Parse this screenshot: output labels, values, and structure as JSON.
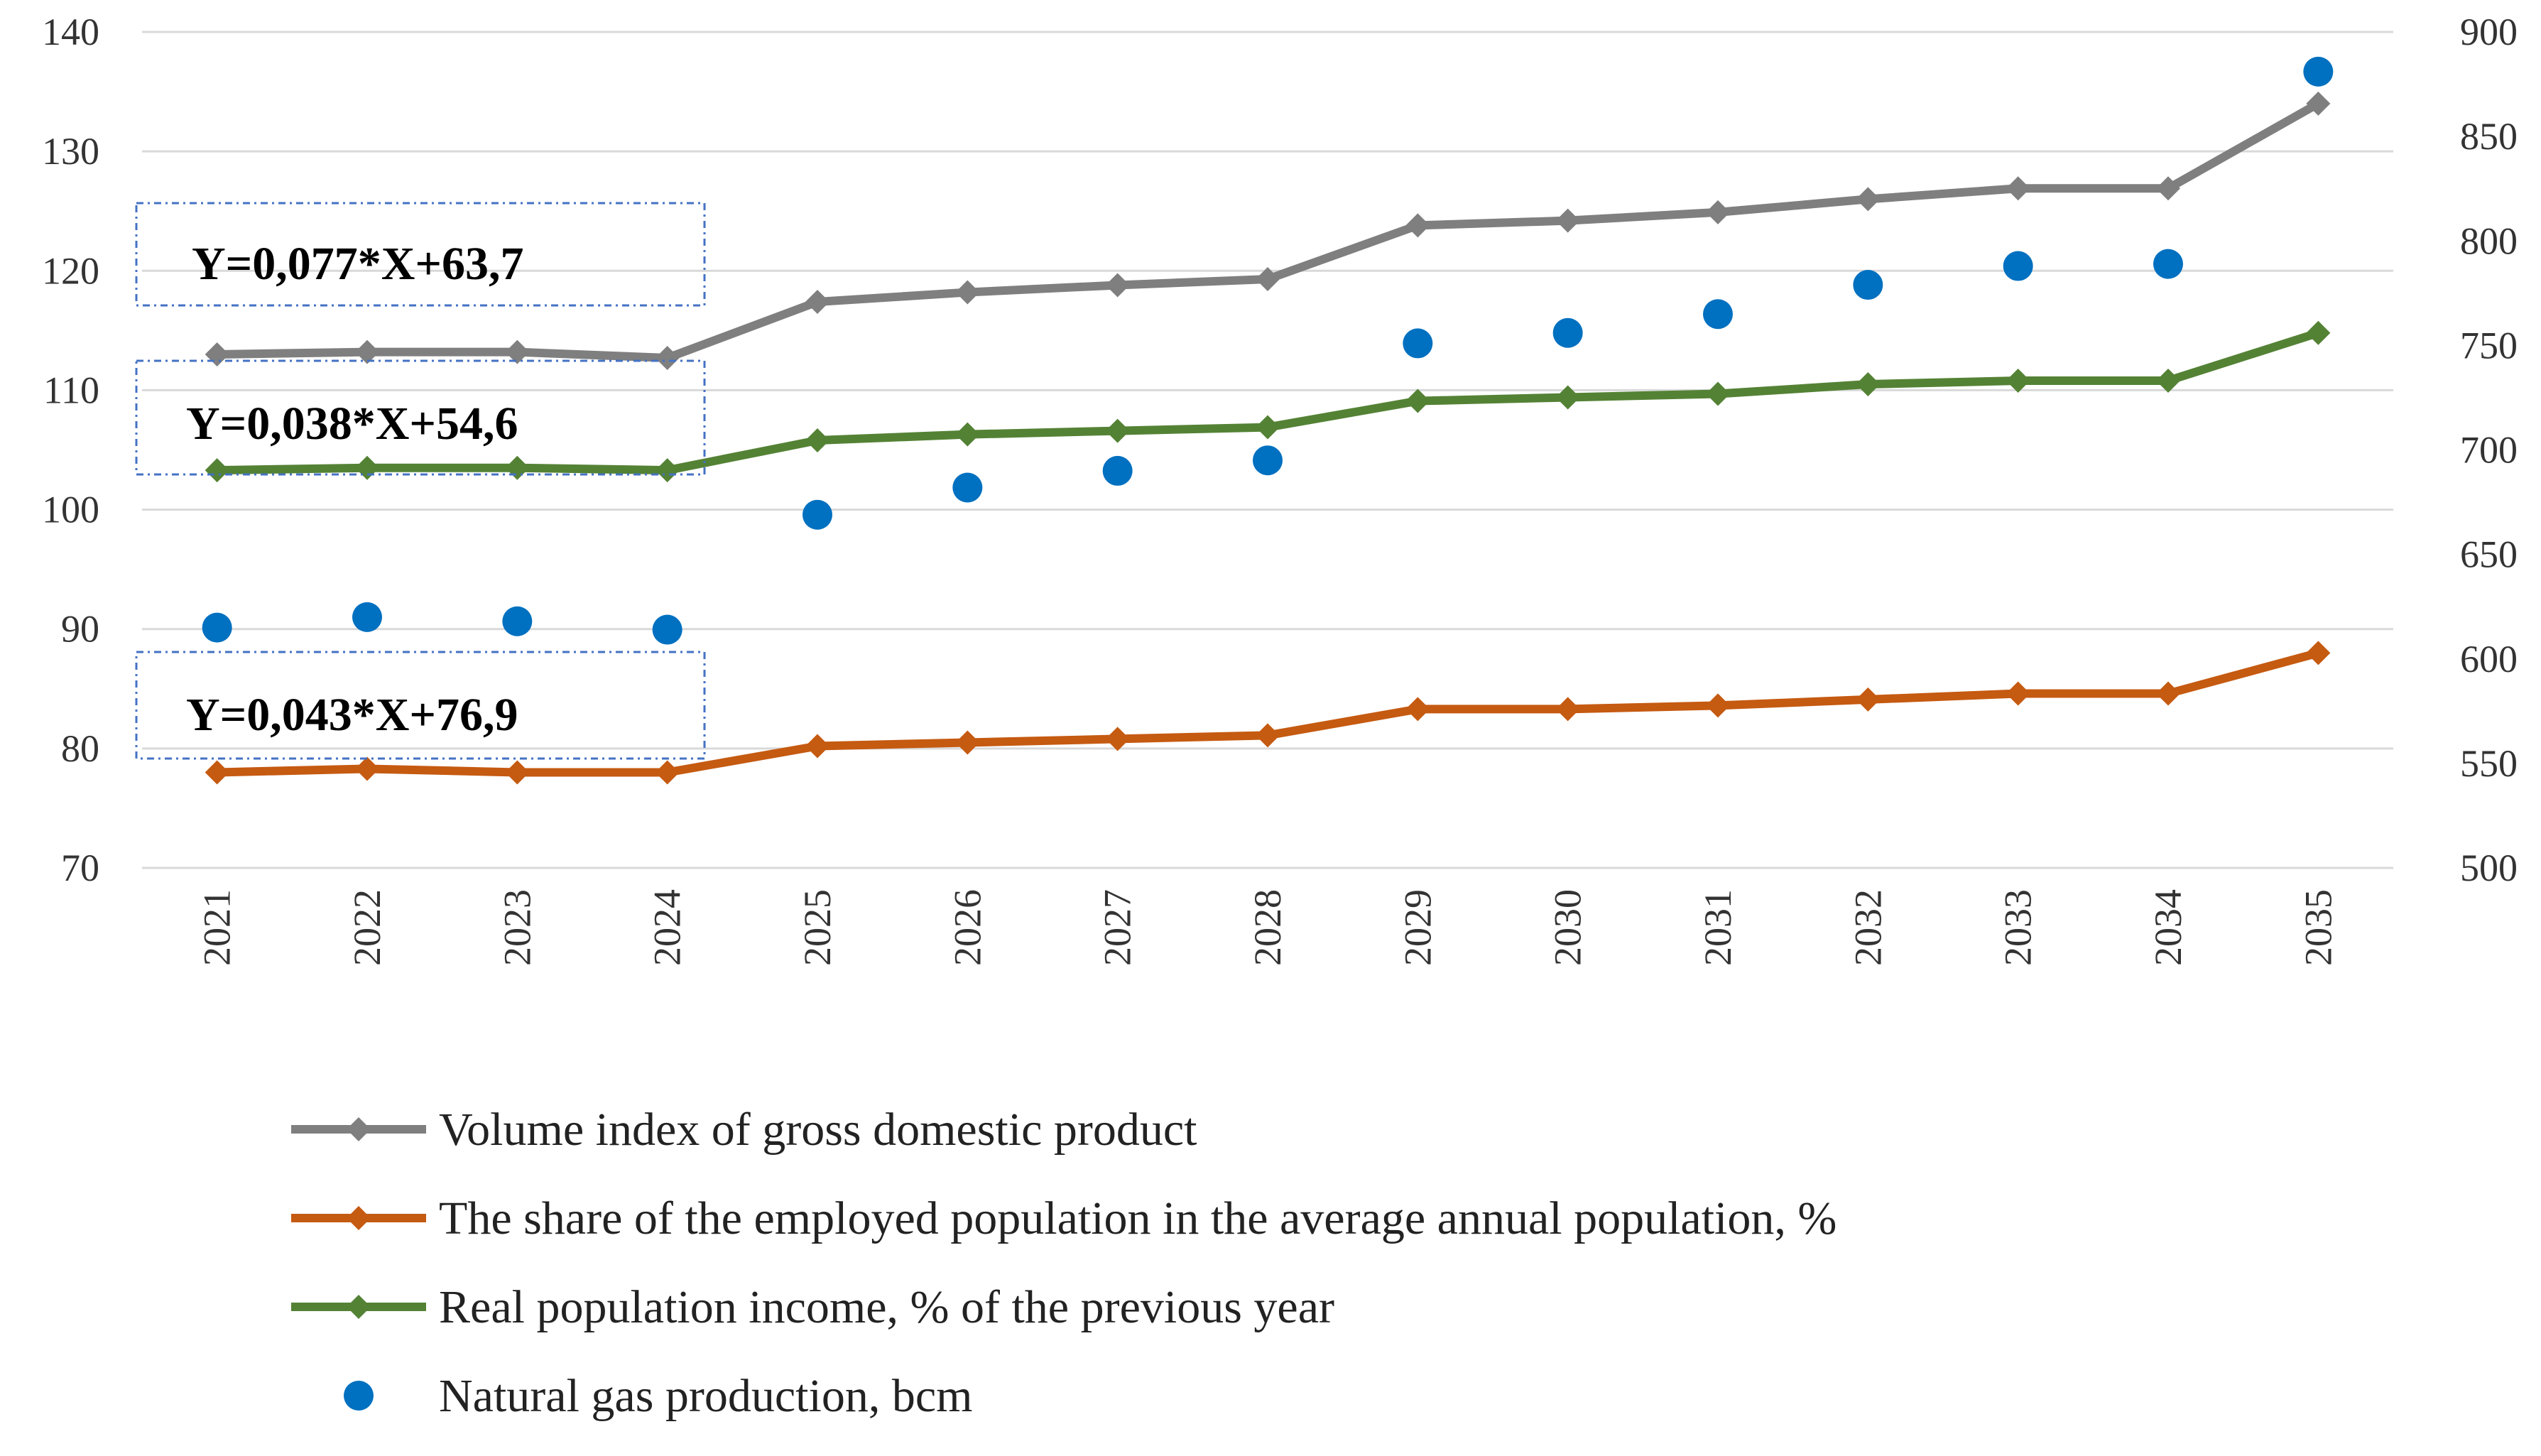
{
  "chart_data": {
    "type": "line",
    "title": "",
    "categories": [
      "2021",
      "2022",
      "2023",
      "2024",
      "2025",
      "2026",
      "2027",
      "2028",
      "2029",
      "2030",
      "2031",
      "2032",
      "2033",
      "2034",
      "2035"
    ],
    "y_left": {
      "min": 70,
      "max": 140,
      "step": 10,
      "ticks": [
        "70",
        "80",
        "90",
        "100",
        "110",
        "120",
        "130",
        "140"
      ]
    },
    "y_right": {
      "min": 500,
      "max": 900,
      "step": 50,
      "ticks": [
        "500",
        "550",
        "600",
        "650",
        "700",
        "750",
        "800",
        "850",
        "900"
      ]
    },
    "series": [
      {
        "name": "Volume index of gross domestic product",
        "axis": "left",
        "style": "line-diamond",
        "color": "#7f7f7f",
        "values": [
          113.0,
          113.2,
          113.2,
          112.7,
          117.4,
          118.2,
          118.8,
          119.3,
          123.8,
          124.2,
          124.9,
          126.0,
          126.9,
          126.9,
          134.0
        ]
      },
      {
        "name": "The share of the employed population in the average annual population, %",
        "axis": "left",
        "style": "line-diamond",
        "color": "#c55a11",
        "values": [
          78.0,
          78.3,
          78.0,
          78.0,
          80.2,
          80.5,
          80.8,
          81.1,
          83.3,
          83.3,
          83.6,
          84.1,
          84.6,
          84.6,
          88.0
        ]
      },
      {
        "name": "Real population income, % of the previous year",
        "axis": "left",
        "style": "line-diamond",
        "color": "#548235",
        "values": [
          103.3,
          103.5,
          103.5,
          103.3,
          105.8,
          106.3,
          106.6,
          106.9,
          109.1,
          109.4,
          109.7,
          110.5,
          110.8,
          110.8,
          114.8
        ]
      },
      {
        "name": "Natural gas production, bcm",
        "axis": "right",
        "style": "marker-circle",
        "color": "#0070c0",
        "values": [
          615,
          620,
          618,
          614,
          669,
          682,
          690,
          695,
          751,
          756,
          765,
          779,
          788,
          789,
          881
        ]
      }
    ],
    "equations": [
      "Y=0,077*X+63,7",
      "Y=0,038*X+54,6",
      "Y=0,043*X+76,9"
    ],
    "legend_position": "bottom"
  }
}
